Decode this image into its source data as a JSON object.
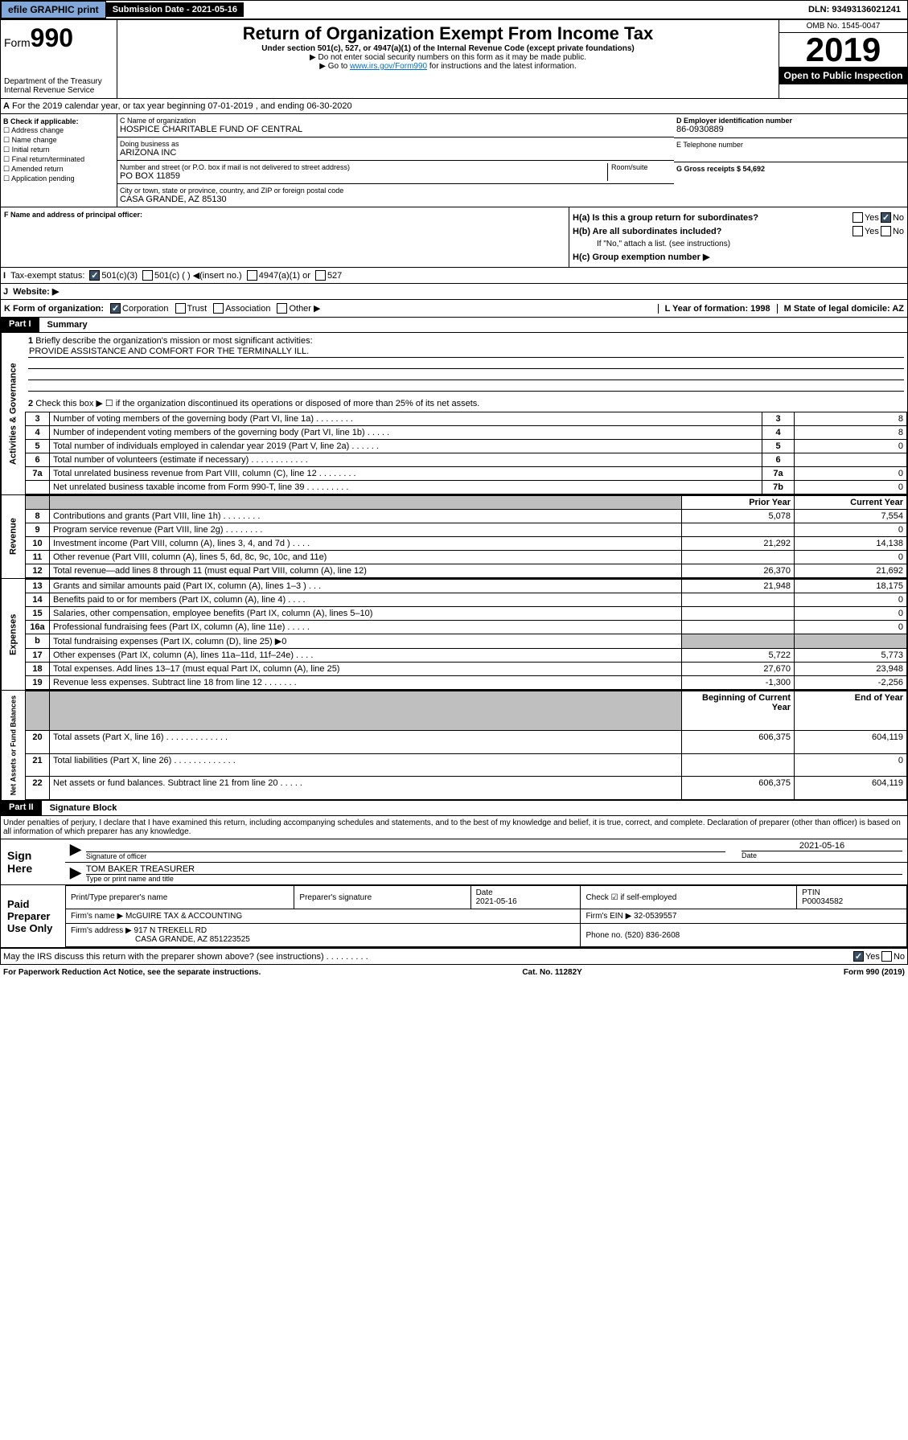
{
  "topbar": {
    "efile": "efile GRAPHIC print",
    "sub_lbl": "Submission Date - 2021-05-16",
    "dln": "DLN: 93493136021241"
  },
  "header": {
    "form": "Form",
    "formnum": "990",
    "dept": "Department of the Treasury",
    "irs": "Internal Revenue Service",
    "title": "Return of Organization Exempt From Income Tax",
    "sub": "Under section 501(c), 527, or 4947(a)(1) of the Internal Revenue Code (except private foundations)",
    "note1": "▶ Do not enter social security numbers on this form as it may be made public.",
    "note2_pre": "▶ Go to ",
    "note2_link": "www.irs.gov/Form990",
    "note2_post": " for instructions and the latest information.",
    "omb": "OMB No. 1545-0047",
    "year": "2019",
    "open": "Open to Public Inspection"
  },
  "period": "For the 2019 calendar year, or tax year beginning 07-01-2019     , and ending 06-30-2020",
  "boxB": {
    "hdr": "B Check if applicable:",
    "items": [
      "☐ Address change",
      "☐ Name change",
      "☐ Initial return",
      "☐ Final return/terminated",
      "☐ Amended return",
      "☐ Application pending"
    ]
  },
  "boxC": {
    "lbl": "C Name of organization",
    "name": "HOSPICE CHARITABLE FUND OF CENTRAL",
    "dba_lbl": "Doing business as",
    "dba": "ARIZONA INC",
    "addr_lbl": "Number and street (or P.O. box if mail is not delivered to street address)",
    "room_lbl": "Room/suite",
    "addr": "PO BOX 11859",
    "city_lbl": "City or town, state or province, country, and ZIP or foreign postal code",
    "city": "CASA GRANDE, AZ  85130"
  },
  "boxD": {
    "lbl": "D Employer identification number",
    "val": "86-0930889"
  },
  "boxE": {
    "lbl": "E Telephone number",
    "val": ""
  },
  "boxG": {
    "lbl": "G Gross receipts $ 54,692"
  },
  "boxF": {
    "lbl": "F  Name and address of principal officer:"
  },
  "boxH": {
    "a": "H(a)  Is this a group return for subordinates?",
    "b": "H(b)  Are all subordinates included?",
    "note": "If \"No,\" attach a list. (see instructions)",
    "c": "H(c)  Group exemption number ▶"
  },
  "boxI": {
    "lbl": "Tax-exempt status:",
    "opts": [
      "501(c)(3)",
      "501(c) (  ) ◀(insert no.)",
      "4947(a)(1) or",
      "527"
    ]
  },
  "boxJ": {
    "lbl": "Website: ▶"
  },
  "boxK": {
    "lbl": "K Form of organization:",
    "opts": [
      "Corporation",
      "Trust",
      "Association",
      "Other ▶"
    ]
  },
  "boxL": {
    "lbl": "L Year of formation: 1998"
  },
  "boxM": {
    "lbl": "M State of legal domicile: AZ"
  },
  "part1": {
    "hdr": "Part I",
    "title": "Summary"
  },
  "summary": {
    "l1": "Briefly describe the organization's mission or most significant activities:",
    "mission": "PROVIDE ASSISTANCE AND COMFORT FOR THE TERMINALLY ILL.",
    "l2": "Check this box ▶ ☐  if the organization discontinued its operations or disposed of more than 25% of its net assets.",
    "rows_gov": [
      {
        "n": "3",
        "t": "Number of voting members of the governing body (Part VI, line 1a)   .    .    .    .    .    .    .    .",
        "box": "3",
        "v": "8"
      },
      {
        "n": "4",
        "t": "Number of independent voting members of the governing body (Part VI, line 1b)   .    .    .    .    .",
        "box": "4",
        "v": "8"
      },
      {
        "n": "5",
        "t": "Total number of individuals employed in calendar year 2019 (Part V, line 2a)   .    .    .    .    .    .",
        "box": "5",
        "v": "0"
      },
      {
        "n": "6",
        "t": "Total number of volunteers (estimate if necessary)   .    .    .    .    .    .    .    .    .    .    .    .",
        "box": "6",
        "v": ""
      },
      {
        "n": "7a",
        "t": "Total unrelated business revenue from Part VIII, column (C), line 12   .    .    .    .    .    .    .    .",
        "box": "7a",
        "v": "0"
      },
      {
        "n": "",
        "t": "Net unrelated business taxable income from Form 990-T, line 39   .    .    .    .    .    .    .    .    .",
        "box": "7b",
        "v": "0"
      }
    ],
    "hdr_prior": "Prior Year",
    "hdr_curr": "Current Year",
    "rows_rev": [
      {
        "n": "8",
        "t": "Contributions and grants (Part VIII, line 1h)   .    .    .    .    .    .    .    .",
        "p": "5,078",
        "c": "7,554"
      },
      {
        "n": "9",
        "t": "Program service revenue (Part VIII, line 2g)   .    .    .    .    .    .    .    .",
        "p": "",
        "c": "0"
      },
      {
        "n": "10",
        "t": "Investment income (Part VIII, column (A), lines 3, 4, and 7d )   .    .    .    .",
        "p": "21,292",
        "c": "14,138"
      },
      {
        "n": "11",
        "t": "Other revenue (Part VIII, column (A), lines 5, 6d, 8c, 9c, 10c, and 11e)",
        "p": "",
        "c": "0"
      },
      {
        "n": "12",
        "t": "Total revenue—add lines 8 through 11 (must equal Part VIII, column (A), line 12)",
        "p": "26,370",
        "c": "21,692"
      }
    ],
    "rows_exp": [
      {
        "n": "13",
        "t": "Grants and similar amounts paid (Part IX, column (A), lines 1–3 )   .    .    .",
        "p": "21,948",
        "c": "18,175"
      },
      {
        "n": "14",
        "t": "Benefits paid to or for members (Part IX, column (A), line 4)   .    .    .    .",
        "p": "",
        "c": "0"
      },
      {
        "n": "15",
        "t": "Salaries, other compensation, employee benefits (Part IX, column (A), lines 5–10)",
        "p": "",
        "c": "0"
      },
      {
        "n": "16a",
        "t": "Professional fundraising fees (Part IX, column (A), line 11e)   .    .    .    .    .",
        "p": "",
        "c": "0"
      },
      {
        "n": "b",
        "t": "Total fundraising expenses (Part IX, column (D), line 25) ▶0",
        "p": "gray",
        "c": "gray"
      },
      {
        "n": "17",
        "t": "Other expenses (Part IX, column (A), lines 11a–11d, 11f–24e)   .    .    .    .",
        "p": "5,722",
        "c": "5,773"
      },
      {
        "n": "18",
        "t": "Total expenses. Add lines 13–17 (must equal Part IX, column (A), line 25)",
        "p": "27,670",
        "c": "23,948"
      },
      {
        "n": "19",
        "t": "Revenue less expenses. Subtract line 18 from line 12   .    .    .    .    .    .    .",
        "p": "-1,300",
        "c": "-2,256"
      }
    ],
    "hdr_beg": "Beginning of Current Year",
    "hdr_end": "End of Year",
    "rows_net": [
      {
        "n": "20",
        "t": "Total assets (Part X, line 16)   .    .    .    .    .    .    .    .    .    .    .    .    .",
        "p": "606,375",
        "c": "604,119"
      },
      {
        "n": "21",
        "t": "Total liabilities (Part X, line 26)   .    .    .    .    .    .    .    .    .    .    .    .    .",
        "p": "",
        "c": "0"
      },
      {
        "n": "22",
        "t": "Net assets or fund balances. Subtract line 21 from line 20   .    .    .    .    .",
        "p": "606,375",
        "c": "604,119"
      }
    ]
  },
  "vert": {
    "gov": "Activities & Governance",
    "rev": "Revenue",
    "exp": "Expenses",
    "net": "Net Assets or Fund Balances"
  },
  "part2": {
    "hdr": "Part II",
    "title": "Signature Block"
  },
  "perjury": "Under penalties of perjury, I declare that I have examined this return, including accompanying schedules and statements, and to the best of my knowledge and belief, it is true, correct, and complete. Declaration of preparer (other than officer) is based on all information of which preparer has any knowledge.",
  "sign": {
    "here": "Sign Here",
    "sig_lbl": "Signature of officer",
    "date_lbl": "Date",
    "date": "2021-05-16",
    "name": "TOM BAKER TREASURER",
    "name_lbl": "Type or print name and title"
  },
  "paid": {
    "hdr": "Paid Preparer Use Only",
    "cols": [
      "Print/Type preparer's name",
      "Preparer's signature",
      "Date"
    ],
    "date": "2021-05-16",
    "check_lbl": "Check ☑ if self-employed",
    "ptin_lbl": "PTIN",
    "ptin": "P00034582",
    "firm_lbl": "Firm's name   ▶",
    "firm": "McGUIRE TAX & ACCOUNTING",
    "ein_lbl": "Firm's EIN ▶ 32-0539557",
    "addr_lbl": "Firm's address ▶",
    "addr": "917 N TREKELL RD",
    "addr2": "CASA GRANDE, AZ  851223525",
    "phone_lbl": "Phone no. (520) 836-2608"
  },
  "discuss": "May the IRS discuss this return with the preparer shown above? (see instructions)   .    .    .    .    .    .    .    .    .",
  "footer": {
    "left": "For Paperwork Reduction Act Notice, see the separate instructions.",
    "mid": "Cat. No. 11282Y",
    "right": "Form 990 (2019)"
  }
}
